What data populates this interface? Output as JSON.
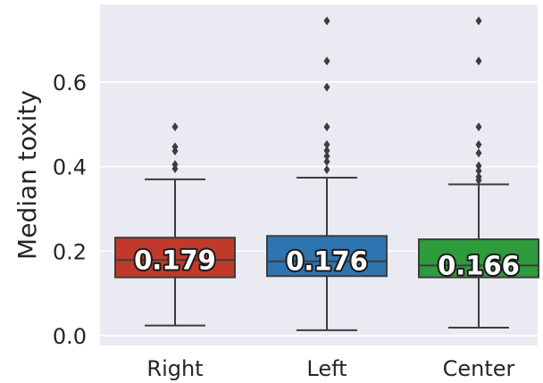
{
  "chart_data": {
    "type": "box",
    "title": "",
    "xlabel": "",
    "ylabel": "Median toxity",
    "ylim": [
      -0.03,
      0.79
    ],
    "yticks": [
      0.0,
      0.2,
      0.4,
      0.6
    ],
    "ytick_labels": [
      "0.0",
      "0.2",
      "0.4",
      "0.6"
    ],
    "grid": true,
    "categories": [
      "Right",
      "Left",
      "Center"
    ],
    "boxes": [
      {
        "category": "Right",
        "color": "#c0392b",
        "whisker_low": 0.024,
        "q1": 0.138,
        "median": 0.179,
        "q3": 0.232,
        "whisker_high": 0.37,
        "outliers": [
          0.395,
          0.405,
          0.437,
          0.447,
          0.494
        ],
        "median_label": "0.179"
      },
      {
        "category": "Left",
        "color": "#2e74b0",
        "whisker_low": 0.013,
        "q1": 0.141,
        "median": 0.176,
        "q3": 0.236,
        "whisker_high": 0.374,
        "outliers": [
          0.393,
          0.412,
          0.425,
          0.438,
          0.452,
          0.494,
          0.588,
          0.65,
          0.745
        ],
        "median_label": "0.176"
      },
      {
        "category": "Center",
        "color": "#2e9b3c",
        "whisker_low": 0.019,
        "q1": 0.138,
        "median": 0.166,
        "q3": 0.228,
        "whisker_high": 0.358,
        "outliers": [
          0.368,
          0.376,
          0.39,
          0.402,
          0.432,
          0.452,
          0.494,
          0.65,
          0.745
        ],
        "median_label": "0.166"
      }
    ]
  },
  "colors": {
    "plot_background": "#eaeaf2",
    "grid": "#ffffff",
    "lines": "#3d3d3d"
  }
}
